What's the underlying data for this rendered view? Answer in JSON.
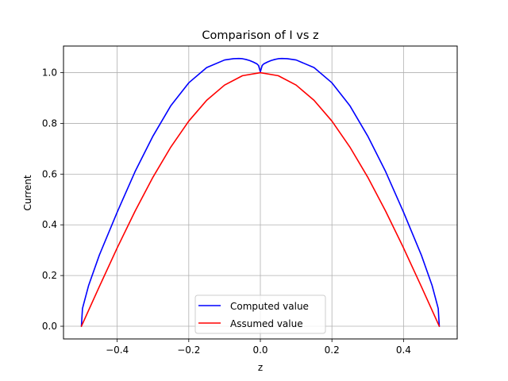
{
  "chart_data": {
    "type": "line",
    "title": "Comparison of I vs z",
    "xlabel": "z",
    "ylabel": "Current",
    "xlim": [
      -0.55,
      0.55
    ],
    "ylim": [
      -0.05,
      1.105
    ],
    "x_ticks": [
      -0.4,
      -0.2,
      0.0,
      0.2,
      0.4
    ],
    "x_tick_labels": [
      "−0.4",
      "−0.2",
      "0.0",
      "0.2",
      "0.4"
    ],
    "y_ticks": [
      0.0,
      0.2,
      0.4,
      0.6,
      0.8,
      1.0
    ],
    "y_tick_labels": [
      "0.0",
      "0.2",
      "0.4",
      "0.6",
      "0.8",
      "1.0"
    ],
    "grid": true,
    "legend_position": "bottom-center",
    "series": [
      {
        "name": "Computed value",
        "color": "#0000ff",
        "x": [
          -0.5,
          -0.497,
          -0.48,
          -0.45,
          -0.4,
          -0.35,
          -0.3,
          -0.25,
          -0.2,
          -0.15,
          -0.1,
          -0.075,
          -0.06,
          -0.05,
          -0.04,
          -0.03,
          -0.02,
          -0.01,
          -0.005,
          0.0,
          0.005,
          0.01,
          0.02,
          0.03,
          0.04,
          0.05,
          0.06,
          0.075,
          0.1,
          0.15,
          0.2,
          0.25,
          0.3,
          0.35,
          0.4,
          0.45,
          0.48,
          0.497,
          0.5
        ],
        "y": [
          0.0,
          0.07,
          0.16,
          0.28,
          0.45,
          0.61,
          0.75,
          0.87,
          0.96,
          1.02,
          1.05,
          1.055,
          1.056,
          1.055,
          1.052,
          1.048,
          1.042,
          1.035,
          1.028,
          1.003,
          1.028,
          1.035,
          1.042,
          1.048,
          1.052,
          1.055,
          1.056,
          1.055,
          1.05,
          1.02,
          0.96,
          0.87,
          0.75,
          0.61,
          0.45,
          0.28,
          0.16,
          0.07,
          0.0
        ]
      },
      {
        "name": "Assumed value",
        "color": "#ff0000",
        "x": [
          -0.5,
          -0.45,
          -0.4,
          -0.35,
          -0.3,
          -0.25,
          -0.2,
          -0.15,
          -0.1,
          -0.05,
          0.0,
          0.05,
          0.1,
          0.15,
          0.2,
          0.25,
          0.3,
          0.35,
          0.4,
          0.45,
          0.5
        ],
        "y": [
          0.0,
          0.156,
          0.309,
          0.454,
          0.588,
          0.707,
          0.809,
          0.891,
          0.951,
          0.988,
          1.0,
          0.988,
          0.951,
          0.891,
          0.809,
          0.707,
          0.588,
          0.454,
          0.309,
          0.156,
          0.0
        ]
      }
    ]
  }
}
